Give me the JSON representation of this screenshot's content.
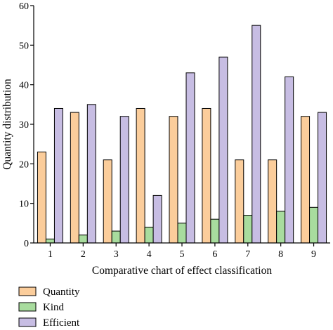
{
  "chart_data": {
    "type": "bar",
    "title": "",
    "xlabel": "Comparative chart of effect classification",
    "ylabel": "Quantity distribution",
    "categories": [
      "1",
      "2",
      "3",
      "4",
      "5",
      "6",
      "7",
      "8",
      "9"
    ],
    "ylim": [
      0,
      60
    ],
    "yticks": [
      "0",
      "10",
      "20",
      "30",
      "40",
      "50",
      "60"
    ],
    "grid": false,
    "legend_position": "bottom-left",
    "series": [
      {
        "name": "Quantity",
        "color": "#fbcd9b",
        "values": [
          23,
          33,
          21,
          34,
          32,
          34,
          21,
          21,
          32
        ]
      },
      {
        "name": "Kind",
        "color": "#a8dc9e",
        "values": [
          1,
          2,
          3,
          4,
          5,
          6,
          7,
          8,
          9
        ]
      },
      {
        "name": "Efficient",
        "color": "#c7bde3",
        "values": [
          34,
          35,
          32,
          12,
          43,
          47,
          55,
          42,
          33
        ]
      }
    ]
  }
}
